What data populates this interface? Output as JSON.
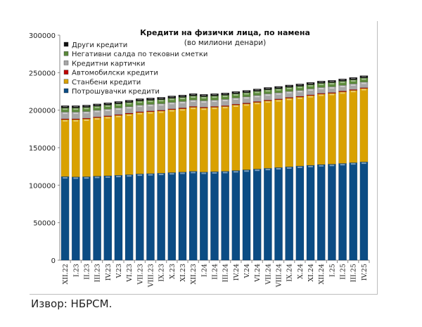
{
  "chart_data": {
    "type": "bar",
    "stacked": true,
    "title": "Кредити на физички лица, по намена",
    "subtitle": "(во милиони денари)",
    "xlabel": "",
    "ylabel": "",
    "ylim": [
      0,
      300000
    ],
    "yticks": [
      "0",
      "50000",
      "100000",
      "150000",
      "200000",
      "250000",
      "300000"
    ],
    "legend_position": "top-left",
    "categories": [
      "XII.22",
      "I.23",
      "II.23",
      "III.23",
      "IV.23",
      "V.23",
      "VI.23",
      "VII.23",
      "VIII.23",
      "IX.23",
      "X.23",
      "XI.23",
      "XII.23",
      "I.24",
      "II.24",
      "III.24",
      "IV.24",
      "V.24",
      "VI.24",
      "VII.24",
      "VIII.24",
      "IX.24",
      "X.24",
      "XI.24",
      "XII.24",
      "I.25",
      "II.25",
      "III.25",
      "IV.25"
    ],
    "series": [
      {
        "name": "Потрошувачки кредити",
        "color": "#0b4c84",
        "values": [
          111500,
          111000,
          111300,
          112000,
          112500,
          113200,
          114000,
          115000,
          115500,
          116000,
          116800,
          117500,
          118500,
          117500,
          118000,
          118500,
          119500,
          120500,
          121500,
          122500,
          123500,
          124500,
          125500,
          126500,
          127500,
          128000,
          129000,
          130000,
          131000
        ]
      },
      {
        "name": "Станбени кредити",
        "color": "#d9a100",
        "values": [
          76000,
          76500,
          77000,
          78000,
          79000,
          80000,
          81000,
          82000,
          82500,
          83000,
          84000,
          84500,
          85500,
          85500,
          86000,
          86500,
          87500,
          88000,
          89000,
          90000,
          90500,
          91500,
          92000,
          93000,
          94000,
          94500,
          95500,
          96500,
          98000
        ]
      },
      {
        "name": "Автомобилски кредити",
        "color": "#c00000",
        "values": [
          1000,
          1000,
          1000,
          1000,
          1000,
          1000,
          1000,
          1000,
          1000,
          1000,
          1000,
          1000,
          1000,
          1000,
          1000,
          1000,
          1000,
          1000,
          1000,
          1000,
          1000,
          1000,
          1000,
          1000,
          1000,
          1000,
          1000,
          1000,
          1000
        ]
      },
      {
        "name": "Кредитни картички",
        "color": "#a6a6a6",
        "values": [
          9000,
          9000,
          9000,
          8900,
          8900,
          8900,
          8800,
          8800,
          8800,
          8700,
          8700,
          8700,
          8600,
          8600,
          8500,
          8500,
          8400,
          8400,
          8300,
          8300,
          8200,
          8100,
          8000,
          8000,
          7900,
          7800,
          7700,
          7600,
          7500
        ]
      },
      {
        "name": "Негативни салда по тековни сметки",
        "color": "#5b8a3a",
        "values": [
          5500,
          5500,
          5500,
          5500,
          5500,
          5500,
          5500,
          5500,
          5500,
          5500,
          5500,
          5500,
          5500,
          5500,
          5500,
          5500,
          5500,
          5500,
          5500,
          5500,
          5500,
          5500,
          5500,
          5500,
          5500,
          5500,
          5500,
          5500,
          5500
        ]
      },
      {
        "name": "Други кредити",
        "color": "#111111",
        "values": [
          3000,
          3000,
          3000,
          3000,
          3000,
          3000,
          3000,
          3000,
          3000,
          3000,
          3000,
          3000,
          3000,
          3000,
          3000,
          3000,
          3000,
          3000,
          3000,
          3000,
          3000,
          3000,
          3000,
          3000,
          3000,
          3000,
          3000,
          3000,
          3000
        ]
      }
    ],
    "legend_order": [
      5,
      4,
      3,
      2,
      1,
      0
    ]
  },
  "caption": "Извор: НБРСМ."
}
